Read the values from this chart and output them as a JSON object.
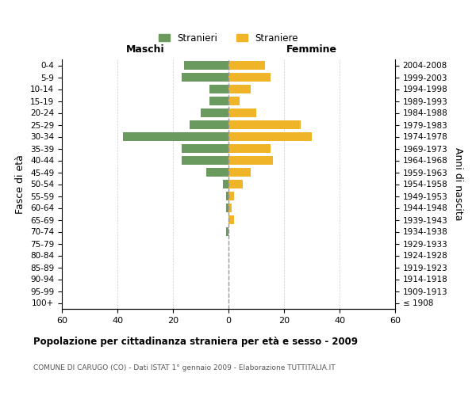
{
  "age_groups": [
    "100+",
    "95-99",
    "90-94",
    "85-89",
    "80-84",
    "75-79",
    "70-74",
    "65-69",
    "60-64",
    "55-59",
    "50-54",
    "45-49",
    "40-44",
    "35-39",
    "30-34",
    "25-29",
    "20-24",
    "15-19",
    "10-14",
    "5-9",
    "0-4"
  ],
  "birth_years": [
    "≤ 1908",
    "1909-1913",
    "1914-1918",
    "1919-1923",
    "1924-1928",
    "1929-1933",
    "1934-1938",
    "1939-1943",
    "1944-1948",
    "1949-1953",
    "1954-1958",
    "1959-1963",
    "1964-1968",
    "1969-1973",
    "1974-1978",
    "1979-1983",
    "1984-1988",
    "1989-1993",
    "1994-1998",
    "1999-2003",
    "2004-2008"
  ],
  "maschi": [
    0,
    0,
    0,
    0,
    0,
    0,
    1,
    0,
    1,
    1,
    2,
    8,
    17,
    17,
    38,
    14,
    10,
    7,
    7,
    17,
    16
  ],
  "femmine": [
    0,
    0,
    0,
    0,
    0,
    0,
    0,
    2,
    1,
    2,
    5,
    8,
    16,
    15,
    30,
    26,
    10,
    4,
    8,
    15,
    13
  ],
  "maschi_color": "#6b9a5e",
  "femmine_color": "#f0b429",
  "title": "Popolazione per cittadinanza straniera per età e sesso - 2009",
  "subtitle": "COMUNE DI CARUGO (CO) - Dati ISTAT 1° gennaio 2009 - Elaborazione TUTTITALIA.IT",
  "xlabel_left": "Maschi",
  "xlabel_right": "Femmine",
  "ylabel_left": "Fasce di età",
  "ylabel_right": "Anni di nascita",
  "legend_maschi": "Stranieri",
  "legend_femmine": "Straniere",
  "xlim": 60,
  "background_color": "#ffffff",
  "grid_color": "#cccccc"
}
